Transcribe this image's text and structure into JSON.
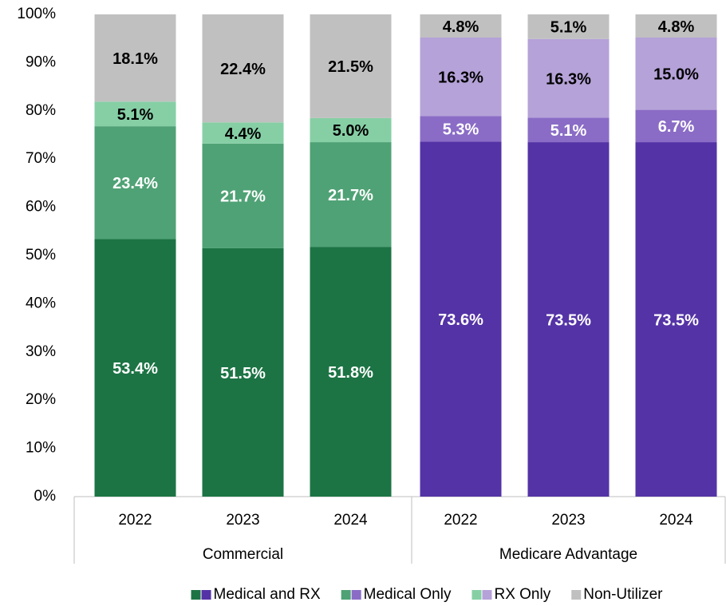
{
  "chart_data": {
    "type": "bar",
    "stacked": true,
    "groups": [
      {
        "name": "Commercial",
        "categories": [
          "2022",
          "2023",
          "2024"
        ]
      },
      {
        "name": "Medicare Advantage",
        "categories": [
          "2022",
          "2023",
          "2024"
        ]
      }
    ],
    "series": [
      {
        "name": "Medical and RX",
        "colors": [
          "#1c7444",
          "#5433a6"
        ],
        "label_color": "#ffffff",
        "values": [
          53.4,
          51.5,
          51.8,
          73.6,
          73.5,
          73.5
        ],
        "value_labels": [
          "53.4%",
          "51.5%",
          "51.8%",
          "73.6%",
          "73.5%",
          "73.5%"
        ]
      },
      {
        "name": "Medical Only",
        "colors": [
          "#4fa275",
          "#8a6cc6"
        ],
        "label_color": "#ffffff",
        "values": [
          23.4,
          21.7,
          21.7,
          5.3,
          5.1,
          6.7
        ],
        "value_labels": [
          "23.4%",
          "21.7%",
          "21.7%",
          "5.3%",
          "5.1%",
          "6.7%"
        ]
      },
      {
        "name": "RX Only",
        "colors": [
          "#86cfa5",
          "#b5a2d8"
        ],
        "label_color": "#000000",
        "values": [
          5.1,
          4.4,
          5.0,
          16.3,
          16.3,
          15.0
        ],
        "value_labels": [
          "5.1%",
          "4.4%",
          "5.0%",
          "16.3%",
          "16.3%",
          "15.0%"
        ]
      },
      {
        "name": "Non-Utilizer",
        "colors": [
          "#c0c0c0",
          "#c0c0c0"
        ],
        "label_color": "#000000",
        "values": [
          18.1,
          22.4,
          21.5,
          4.8,
          5.1,
          4.8
        ],
        "value_labels": [
          "18.1%",
          "22.4%",
          "21.5%",
          "4.8%",
          "5.1%",
          "4.8%"
        ]
      }
    ],
    "ylim": [
      0,
      100
    ],
    "yticks": [
      {
        "value": 0,
        "label": "0%"
      },
      {
        "value": 10,
        "label": "10%"
      },
      {
        "value": 20,
        "label": "20%"
      },
      {
        "value": 30,
        "label": "30%"
      },
      {
        "value": 40,
        "label": "40%"
      },
      {
        "value": 50,
        "label": "50%"
      },
      {
        "value": 60,
        "label": "60%"
      },
      {
        "value": 70,
        "label": "70%"
      },
      {
        "value": 80,
        "label": "80%"
      },
      {
        "value": 90,
        "label": "90%"
      },
      {
        "value": 100,
        "label": "100%"
      }
    ],
    "legend": "bottom"
  }
}
